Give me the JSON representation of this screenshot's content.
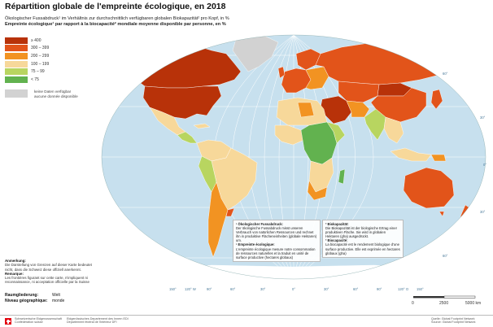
{
  "title": "Répartition globale de l'empreinte écologique, en 2018",
  "subtitle_de": "Ökologischer Fussabdruck¹ im Verhältnis zur durchschnittlich verfügbaren globalen Biokapazität² pro Kopf, in %",
  "subtitle_fr": "Empreinte écologique¹ par rapport à la biocapacité² mondiale moyenne disponible par personne, en %",
  "legend": [
    {
      "label": "≥  400",
      "color": "#b83209"
    },
    {
      "label": "300 –  399",
      "color": "#e2541a"
    },
    {
      "label": "200 –  299",
      "color": "#f29322"
    },
    {
      "label": "100 –  199",
      "color": "#f7d89a"
    },
    {
      "label": "75 –    99",
      "color": "#b8d560"
    },
    {
      "label": "<    75",
      "color": "#62b24f"
    }
  ],
  "no_data": {
    "line1": "keine Daten verfügbar",
    "line2": "aucune donnée disponible",
    "color": "#d2d2d2"
  },
  "map": {
    "ocean_color": "#c7e0ee",
    "graticule_color": "#ffffff",
    "meridian_labels": [
      "150°",
      "120° W",
      "90°",
      "60°",
      "30°",
      "0°",
      "30°",
      "60°",
      "90°",
      "120° O",
      "150°"
    ],
    "parallel_labels": [
      "60°",
      "30°",
      "0°",
      "30°",
      "60°"
    ]
  },
  "box_de": {
    "h1": "¹ Ökologischer Fussabdruck:",
    "t1": "Der ökologische Fussabdruck misst unseren Verbrauch von natürlichen Ressourcen und rechnet ihn in produktive Flächeneinheiten (globale Hektaren) um.",
    "h2": "² Biokapazität:",
    "t2": "Die Biokapazität ist der biologische Ertrag einer produktiven Fläche. Sie wird in globalen Hektaren (gha) ausgedrückt."
  },
  "box_fr": {
    "h1": "¹ Empreinte écologique:",
    "t1": "L'empreinte écologique mesure notre consommation de ressources naturelles et la traduit en unité de surface productive (hectares globaux)",
    "h2": "² Biocapacité:",
    "t2": "La biocapacité est le rendement biologique d'une surface productive. Elle est exprimée en hectares globaux (gha)"
  },
  "notes": {
    "h_de": "Anmerkung:",
    "t_de": "Die Darstellung von Grenzen auf dieser Karte bedeutet nicht, dass die Schweiz diese offiziell anerkennt.",
    "h_fr": "Remarque:",
    "t_fr": "Les frontières figurant sur cette carte, n'impliquent ni reconnaissance, ni acceptation officielle par la Suisse"
  },
  "meta": {
    "k1": "Raumgliederung:",
    "v1": "Welt",
    "k2": "Niveau géographique:",
    "v2": "monde"
  },
  "scale": {
    "l0": "0",
    "l1": "2500",
    "l2": "5000 km"
  },
  "footer": {
    "org1": "Schweizerische Eidgenossenschaft",
    "org2": "Confédération suisse",
    "dep1": "Eidgenössisches Departement des Innern EDI",
    "dep2": "Département fédéral de l'intérieur DFI",
    "src1": "Quelle: Global Footprint Network",
    "src2": "Source: Global Footprint Network"
  }
}
